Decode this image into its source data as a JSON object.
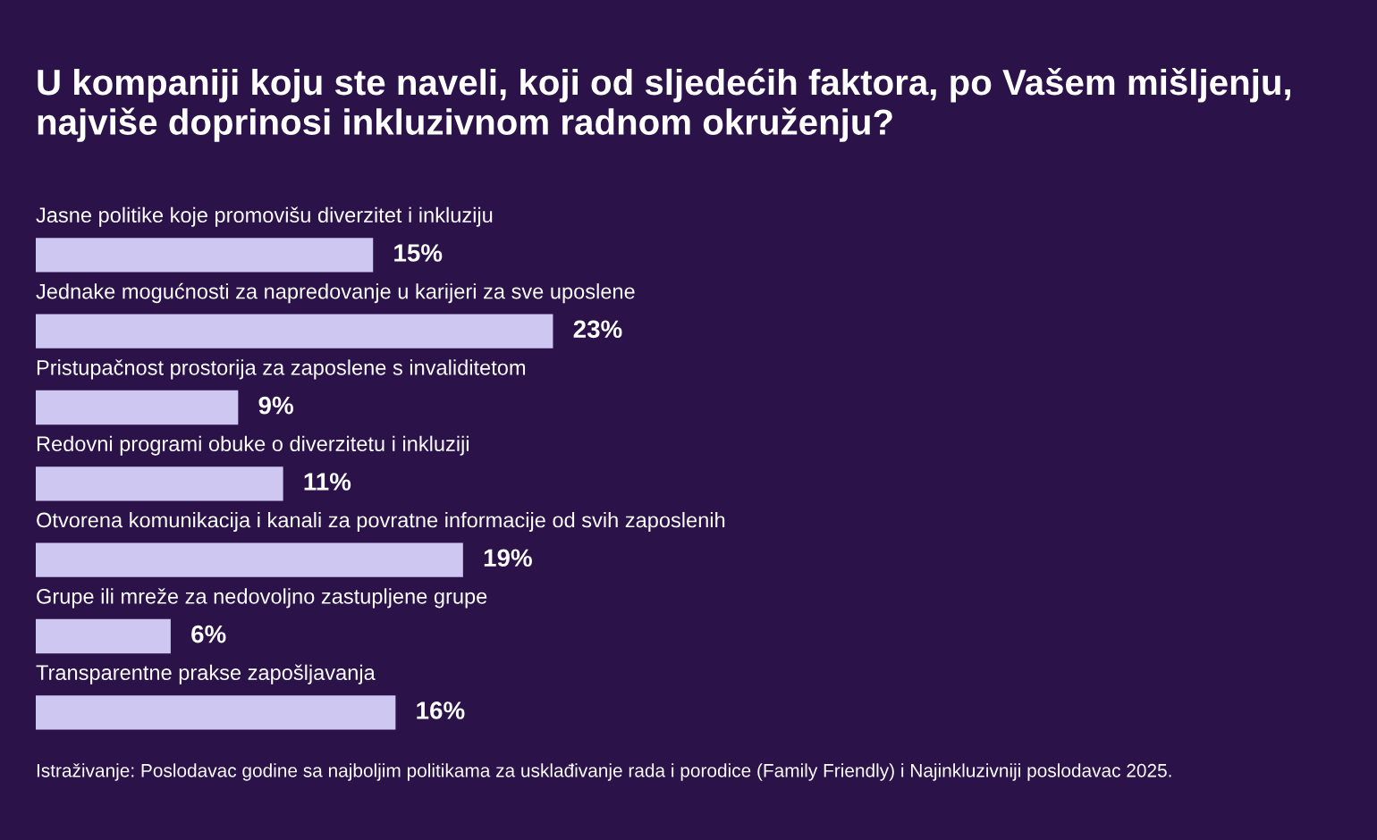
{
  "chart_data": {
    "type": "bar",
    "orientation": "horizontal",
    "title": "U kompaniji koju ste naveli, koji od sljedećih faktora, po Vašem mišljenju, najviše doprinosi inkluzivnom radnom okruženju?",
    "categories": [
      "Jasne politike koje promovišu diverzitet i inkluziju",
      "Jednake mogućnosti za napredovanje u karijeri za sve uposlene",
      "Pristupačnost prostorija za zaposlene s invaliditetom",
      "Redovni programi obuke o diverzitetu i inkluziji",
      "Otvorena komunikacija i kanali za povratne informacije od svih zaposlenih",
      "Grupe ili mreže za nedovoljno zastupljene grupe",
      "Transparentne prakse zapošljavanja"
    ],
    "values": [
      15,
      23,
      9,
      11,
      19,
      6,
      16
    ],
    "value_labels": [
      "15%",
      "23%",
      "9%",
      "11%",
      "19%",
      "6%",
      "16%"
    ],
    "color": "#cdc7f2",
    "annotations": [
      "Istraživanje: Poslodavac godine sa najboljim politikama za usklađivanje rada i porodice (Family Friendly) i Najinkluzivniji poslodavac 2025."
    ]
  }
}
